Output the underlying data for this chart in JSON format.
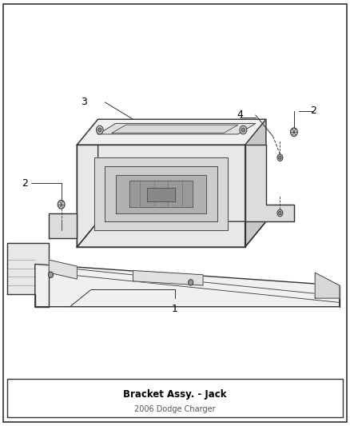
{
  "title": "Bracket Assy. - Jack",
  "subtitle": "2006 Dodge Charger",
  "background_color": "#ffffff",
  "line_color": "#333333",
  "label_color": "#000000",
  "fig_width": 4.38,
  "fig_height": 5.33,
  "dpi": 100
}
